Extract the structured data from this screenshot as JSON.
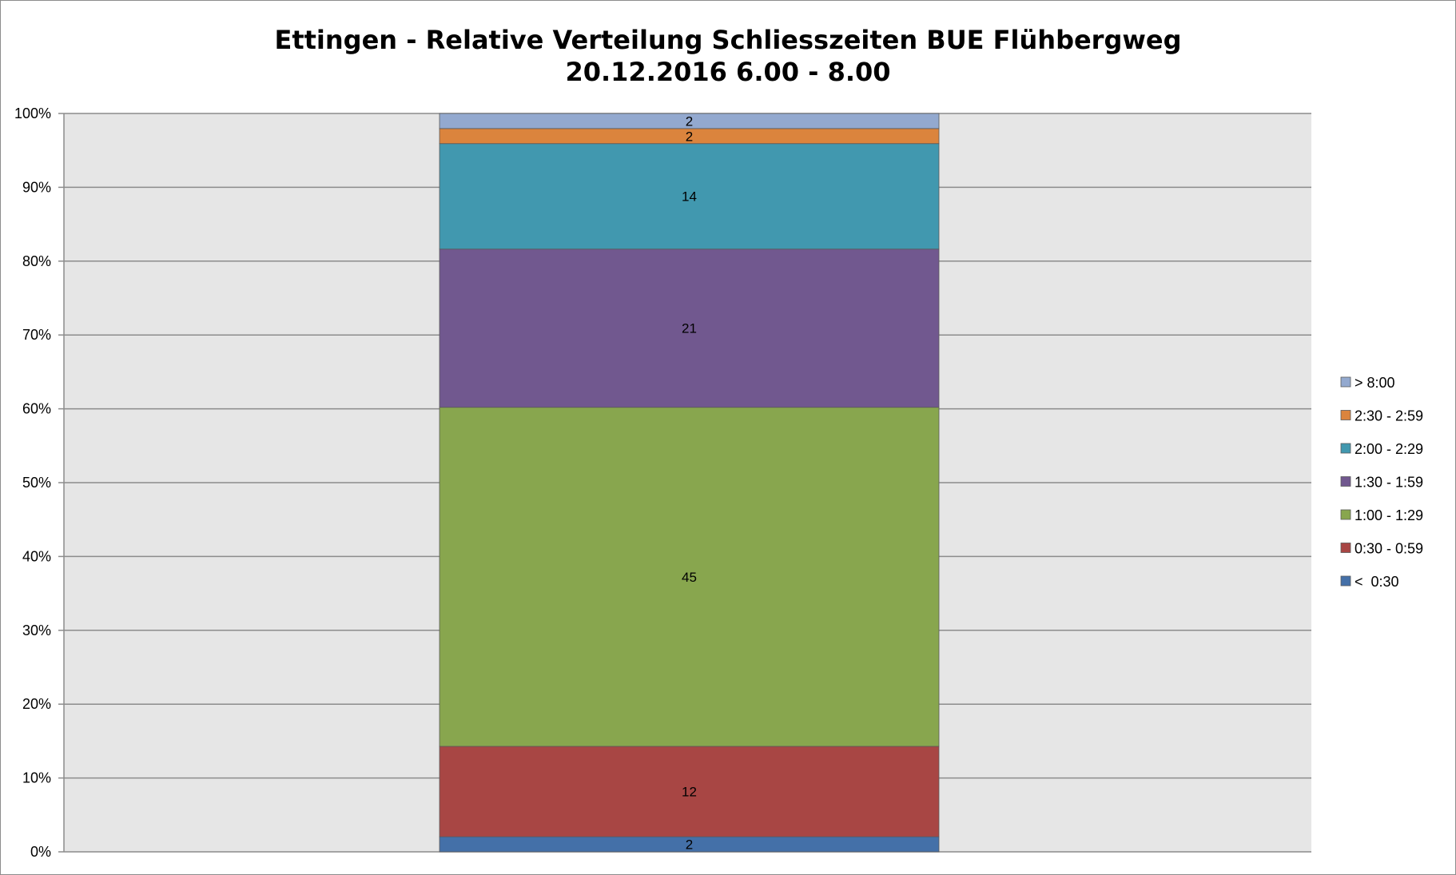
{
  "chart_data": {
    "type": "bar",
    "stacked": true,
    "normalized_percent": true,
    "title": [
      "Ettingen - Relative Verteilung Schliesszeiten BUE Flühbergweg",
      "20.12.2016 6.00 - 8.00"
    ],
    "categories": [
      ""
    ],
    "ylim": [
      0,
      100
    ],
    "yticks": [
      "0%",
      "10%",
      "20%",
      "30%",
      "40%",
      "50%",
      "60%",
      "70%",
      "80%",
      "90%",
      "100%"
    ],
    "grid": true,
    "legend_position": "right",
    "series": [
      {
        "name": "<  0:30",
        "values": [
          2
        ],
        "color": "#4470a8"
      },
      {
        "name": "0:30 - 0:59",
        "values": [
          12
        ],
        "color": "#a84644"
      },
      {
        "name": "1:00 - 1:29",
        "values": [
          45
        ],
        "color": "#88a64e"
      },
      {
        "name": "1:30 - 1:59",
        "values": [
          21
        ],
        "color": "#71588f"
      },
      {
        "name": "2:00 - 2:29",
        "values": [
          14
        ],
        "color": "#4198af"
      },
      {
        "name": "2:30 - 2:59",
        "values": [
          2
        ],
        "color": "#db843d"
      },
      {
        "name": "> 8:00",
        "values": [
          2
        ],
        "color": "#93a9cf"
      }
    ]
  }
}
